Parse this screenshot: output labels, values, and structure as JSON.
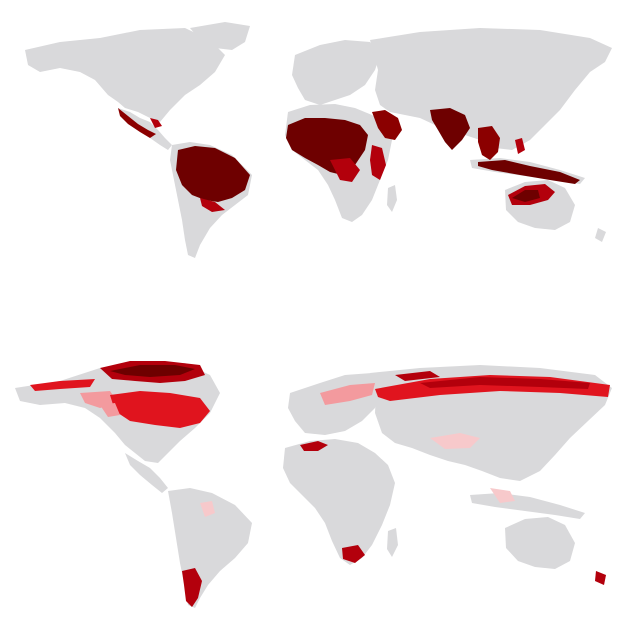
{
  "colors": {
    "background": "#ffffff",
    "land": "#d9d9db",
    "very_high": "#6e0000",
    "high": "#b3000c",
    "medium": "#e0141e",
    "low": "#f39a9e",
    "very_low": "#f7c9cb"
  },
  "panels": [
    {
      "id": "top",
      "highlighted_regions": [
        "mexico-central-america",
        "amazon-basin",
        "west-central-africa",
        "sahel",
        "east-africa",
        "india",
        "southeast-asia",
        "indonesia",
        "northern-australia"
      ]
    },
    {
      "id": "bottom",
      "highlighted_regions": [
        "canada",
        "arctic-islands",
        "siberia",
        "north-africa-coast",
        "patagonia",
        "south-africa",
        "new-zealand",
        "tibet"
      ]
    }
  ]
}
